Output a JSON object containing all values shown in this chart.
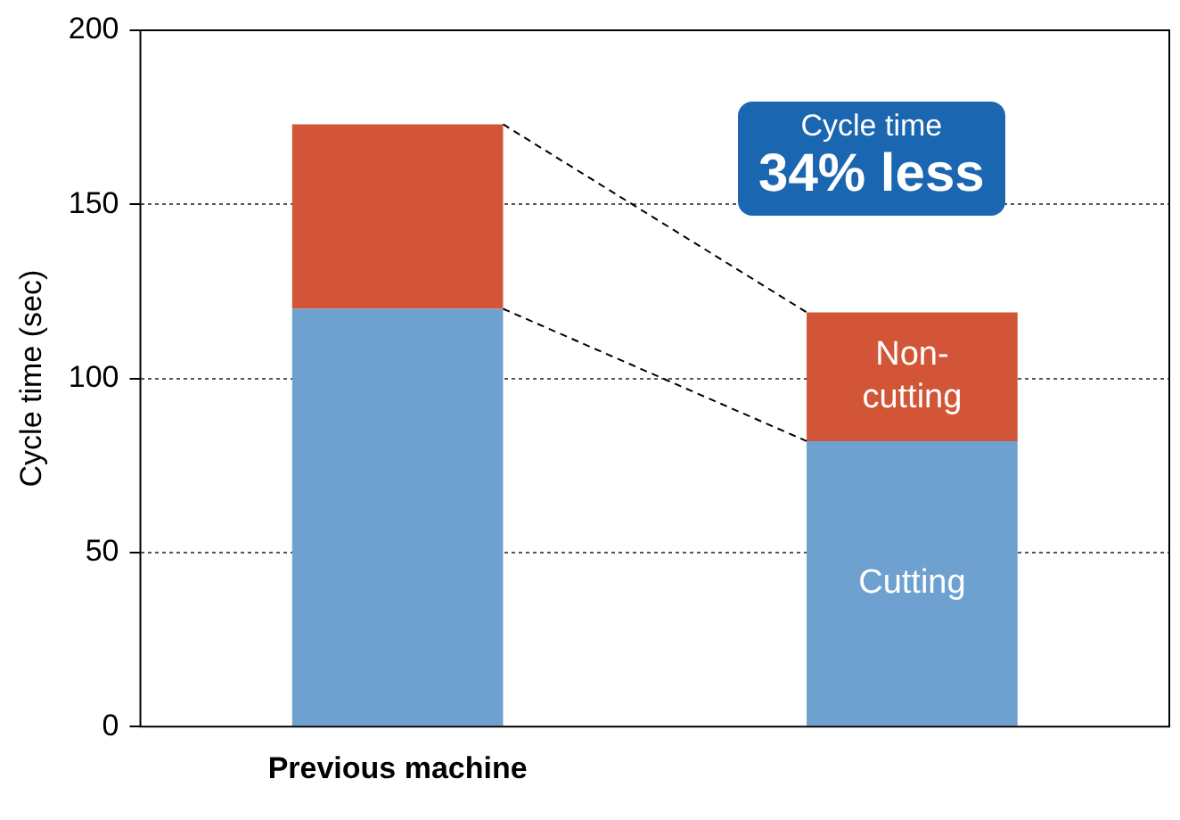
{
  "chart_data": {
    "type": "bar",
    "stacked": true,
    "ylabel": "Cycle time (sec)",
    "categories": [
      "Previous machine",
      null
    ],
    "series": [
      {
        "name": "Cutting",
        "color": "#6ea1d0",
        "values": [
          120,
          82
        ]
      },
      {
        "name": "Non-cutting",
        "color": "#d35537",
        "values": [
          53,
          37
        ]
      }
    ],
    "ylim": [
      0,
      200
    ],
    "yticks": [
      0,
      50,
      100,
      150,
      200
    ],
    "grid": "y",
    "annotations": [
      "Cycle time",
      "34% less"
    ]
  }
}
